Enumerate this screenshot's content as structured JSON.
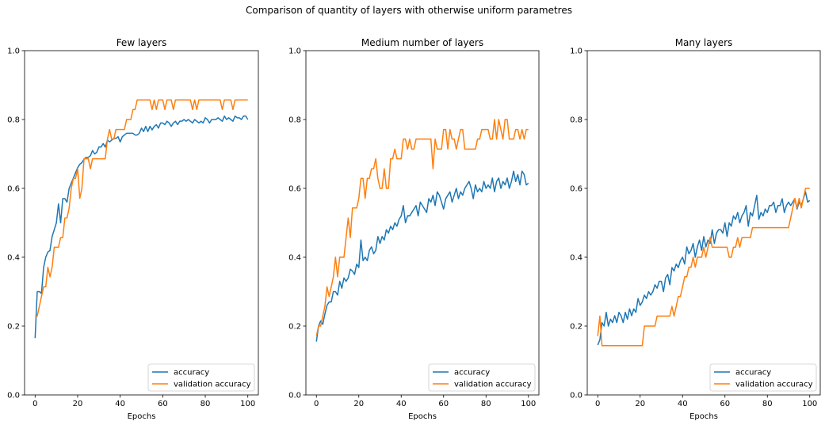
{
  "suptitle": "Comparison of quantity of layers with otherwise uniform parametres",
  "colors": {
    "accuracy": "#1f77b4",
    "validation": "#ff7f0e"
  },
  "chart_data": [
    {
      "type": "line",
      "title": "Few layers",
      "xlabel": "Epochs",
      "ylabel": "",
      "xlim": [
        -4.95,
        104.95
      ],
      "ylim": [
        0,
        1
      ],
      "xticks": [
        0,
        20,
        40,
        60,
        80,
        100
      ],
      "yticks": [
        0.0,
        0.2,
        0.4,
        0.6,
        0.8,
        1.0
      ],
      "legend_position": "lower-right",
      "series": [
        {
          "name": "accuracy",
          "color": "#1f77b4",
          "x_start": 0,
          "values": [
            0.165,
            0.3,
            0.3,
            0.295,
            0.37,
            0.4,
            0.415,
            0.42,
            0.46,
            0.48,
            0.5,
            0.555,
            0.5,
            0.57,
            0.57,
            0.56,
            0.6,
            0.615,
            0.63,
            0.645,
            0.66,
            0.67,
            0.675,
            0.685,
            0.69,
            0.69,
            0.695,
            0.71,
            0.7,
            0.705,
            0.72,
            0.72,
            0.73,
            0.72,
            0.74,
            0.735,
            0.74,
            0.745,
            0.745,
            0.75,
            0.735,
            0.75,
            0.755,
            0.76,
            0.76,
            0.76,
            0.76,
            0.755,
            0.755,
            0.76,
            0.775,
            0.765,
            0.78,
            0.765,
            0.78,
            0.77,
            0.78,
            0.785,
            0.775,
            0.79,
            0.79,
            0.785,
            0.795,
            0.79,
            0.78,
            0.79,
            0.795,
            0.785,
            0.795,
            0.795,
            0.8,
            0.795,
            0.8,
            0.795,
            0.79,
            0.8,
            0.795,
            0.79,
            0.795,
            0.79,
            0.805,
            0.8,
            0.79,
            0.8,
            0.8,
            0.8,
            0.805,
            0.8,
            0.795,
            0.81,
            0.8,
            0.805,
            0.8,
            0.795,
            0.81,
            0.805,
            0.805,
            0.8,
            0.81,
            0.81,
            0.8
          ]
        },
        {
          "name": "validation accuracy",
          "color": "#ff7f0e",
          "x_start": 0,
          "values": [
            0.229,
            0.229,
            0.257,
            0.286,
            0.314,
            0.314,
            0.371,
            0.343,
            0.371,
            0.429,
            0.429,
            0.429,
            0.457,
            0.457,
            0.514,
            0.514,
            0.543,
            0.6,
            0.629,
            0.629,
            0.657,
            0.571,
            0.6,
            0.686,
            0.686,
            0.686,
            0.657,
            0.686,
            0.686,
            0.686,
            0.686,
            0.686,
            0.686,
            0.686,
            0.743,
            0.771,
            0.743,
            0.743,
            0.771,
            0.771,
            0.771,
            0.771,
            0.771,
            0.8,
            0.8,
            0.8,
            0.829,
            0.829,
            0.857,
            0.857,
            0.857,
            0.857,
            0.857,
            0.857,
            0.857,
            0.829,
            0.857,
            0.829,
            0.857,
            0.857,
            0.857,
            0.829,
            0.857,
            0.857,
            0.857,
            0.829,
            0.857,
            0.857,
            0.857,
            0.857,
            0.857,
            0.857,
            0.857,
            0.857,
            0.829,
            0.857,
            0.829,
            0.857,
            0.857,
            0.857,
            0.857,
            0.857,
            0.857,
            0.857,
            0.857,
            0.857,
            0.857,
            0.857,
            0.829,
            0.857,
            0.857,
            0.857,
            0.857,
            0.829,
            0.857,
            0.857,
            0.857,
            0.857,
            0.857,
            0.857,
            0.857
          ]
        }
      ]
    },
    {
      "type": "line",
      "title": "Medium number of layers",
      "xlabel": "Epochs",
      "ylabel": "",
      "xlim": [
        -4.95,
        104.95
      ],
      "ylim": [
        0,
        1
      ],
      "xticks": [
        0,
        20,
        40,
        60,
        80,
        100
      ],
      "yticks": [
        0.0,
        0.2,
        0.4,
        0.6,
        0.8,
        1.0
      ],
      "legend_position": "lower-right",
      "series": [
        {
          "name": "accuracy",
          "color": "#1f77b4",
          "x_start": 0,
          "values": [
            0.155,
            0.2,
            0.215,
            0.205,
            0.235,
            0.26,
            0.27,
            0.27,
            0.3,
            0.3,
            0.29,
            0.33,
            0.31,
            0.34,
            0.33,
            0.34,
            0.365,
            0.36,
            0.35,
            0.38,
            0.37,
            0.45,
            0.39,
            0.4,
            0.39,
            0.42,
            0.43,
            0.41,
            0.42,
            0.46,
            0.44,
            0.46,
            0.45,
            0.48,
            0.47,
            0.49,
            0.48,
            0.5,
            0.49,
            0.51,
            0.52,
            0.55,
            0.5,
            0.52,
            0.52,
            0.53,
            0.54,
            0.55,
            0.52,
            0.56,
            0.55,
            0.54,
            0.53,
            0.57,
            0.56,
            0.58,
            0.55,
            0.59,
            0.58,
            0.56,
            0.54,
            0.57,
            0.58,
            0.59,
            0.56,
            0.58,
            0.6,
            0.57,
            0.59,
            0.58,
            0.6,
            0.61,
            0.62,
            0.6,
            0.57,
            0.61,
            0.59,
            0.6,
            0.59,
            0.62,
            0.6,
            0.61,
            0.6,
            0.63,
            0.59,
            0.62,
            0.63,
            0.6,
            0.62,
            0.61,
            0.63,
            0.6,
            0.62,
            0.65,
            0.62,
            0.64,
            0.61,
            0.65,
            0.64,
            0.61,
            0.615
          ]
        },
        {
          "name": "validation accuracy",
          "color": "#ff7f0e",
          "x_start": 0,
          "values": [
            0.171,
            0.2,
            0.2,
            0.229,
            0.257,
            0.314,
            0.286,
            0.314,
            0.343,
            0.4,
            0.343,
            0.4,
            0.4,
            0.4,
            0.457,
            0.514,
            0.457,
            0.543,
            0.543,
            0.543,
            0.571,
            0.629,
            0.629,
            0.571,
            0.629,
            0.629,
            0.657,
            0.657,
            0.686,
            0.629,
            0.6,
            0.6,
            0.657,
            0.6,
            0.6,
            0.686,
            0.686,
            0.714,
            0.686,
            0.686,
            0.686,
            0.743,
            0.743,
            0.714,
            0.743,
            0.714,
            0.714,
            0.743,
            0.743,
            0.743,
            0.743,
            0.743,
            0.743,
            0.743,
            0.743,
            0.657,
            0.743,
            0.714,
            0.714,
            0.714,
            0.771,
            0.771,
            0.714,
            0.771,
            0.743,
            0.743,
            0.714,
            0.743,
            0.771,
            0.771,
            0.714,
            0.714,
            0.714,
            0.714,
            0.714,
            0.714,
            0.743,
            0.743,
            0.771,
            0.771,
            0.771,
            0.771,
            0.743,
            0.743,
            0.8,
            0.743,
            0.8,
            0.771,
            0.743,
            0.8,
            0.8,
            0.743,
            0.743,
            0.743,
            0.771,
            0.771,
            0.743,
            0.771,
            0.743,
            0.771,
            0.771
          ]
        }
      ]
    },
    {
      "type": "line",
      "title": "Many layers",
      "xlabel": "Epochs",
      "ylabel": "",
      "xlim": [
        -4.95,
        104.95
      ],
      "ylim": [
        0,
        1
      ],
      "xticks": [
        0,
        20,
        40,
        60,
        80,
        100
      ],
      "yticks": [
        0.0,
        0.2,
        0.4,
        0.6,
        0.8,
        1.0
      ],
      "legend_position": "lower-right",
      "series": [
        {
          "name": "accuracy",
          "color": "#1f77b4",
          "x_start": 0,
          "values": [
            0.145,
            0.16,
            0.21,
            0.2,
            0.24,
            0.2,
            0.22,
            0.21,
            0.23,
            0.21,
            0.24,
            0.23,
            0.21,
            0.24,
            0.22,
            0.25,
            0.23,
            0.25,
            0.24,
            0.28,
            0.26,
            0.27,
            0.29,
            0.28,
            0.3,
            0.29,
            0.3,
            0.32,
            0.31,
            0.33,
            0.33,
            0.3,
            0.34,
            0.35,
            0.32,
            0.37,
            0.36,
            0.38,
            0.37,
            0.39,
            0.4,
            0.38,
            0.43,
            0.41,
            0.42,
            0.44,
            0.4,
            0.43,
            0.45,
            0.42,
            0.46,
            0.43,
            0.45,
            0.44,
            0.48,
            0.44,
            0.47,
            0.48,
            0.48,
            0.47,
            0.5,
            0.46,
            0.5,
            0.49,
            0.52,
            0.51,
            0.53,
            0.5,
            0.52,
            0.53,
            0.55,
            0.49,
            0.53,
            0.52,
            0.55,
            0.58,
            0.51,
            0.53,
            0.52,
            0.54,
            0.53,
            0.55,
            0.55,
            0.56,
            0.53,
            0.55,
            0.55,
            0.57,
            0.53,
            0.55,
            0.56,
            0.55,
            0.56,
            0.57,
            0.54,
            0.56,
            0.55,
            0.57,
            0.59,
            0.56,
            0.565
          ]
        },
        {
          "name": "validation accuracy",
          "color": "#ff7f0e",
          "x_start": 0,
          "values": [
            0.171,
            0.229,
            0.143,
            0.143,
            0.143,
            0.143,
            0.143,
            0.143,
            0.143,
            0.143,
            0.143,
            0.143,
            0.143,
            0.143,
            0.143,
            0.143,
            0.143,
            0.143,
            0.143,
            0.143,
            0.143,
            0.143,
            0.2,
            0.2,
            0.2,
            0.2,
            0.2,
            0.2,
            0.229,
            0.229,
            0.229,
            0.229,
            0.229,
            0.229,
            0.229,
            0.257,
            0.229,
            0.257,
            0.286,
            0.286,
            0.314,
            0.343,
            0.343,
            0.371,
            0.371,
            0.4,
            0.371,
            0.4,
            0.4,
            0.4,
            0.429,
            0.4,
            0.429,
            0.457,
            0.429,
            0.429,
            0.429,
            0.429,
            0.429,
            0.429,
            0.429,
            0.429,
            0.4,
            0.4,
            0.429,
            0.429,
            0.457,
            0.429,
            0.457,
            0.457,
            0.457,
            0.457,
            0.457,
            0.486,
            0.486,
            0.486,
            0.486,
            0.486,
            0.486,
            0.486,
            0.486,
            0.486,
            0.486,
            0.486,
            0.486,
            0.486,
            0.486,
            0.486,
            0.486,
            0.486,
            0.486,
            0.514,
            0.543,
            0.571,
            0.543,
            0.571,
            0.543,
            0.571,
            0.6,
            0.6,
            0.6
          ]
        }
      ]
    }
  ]
}
